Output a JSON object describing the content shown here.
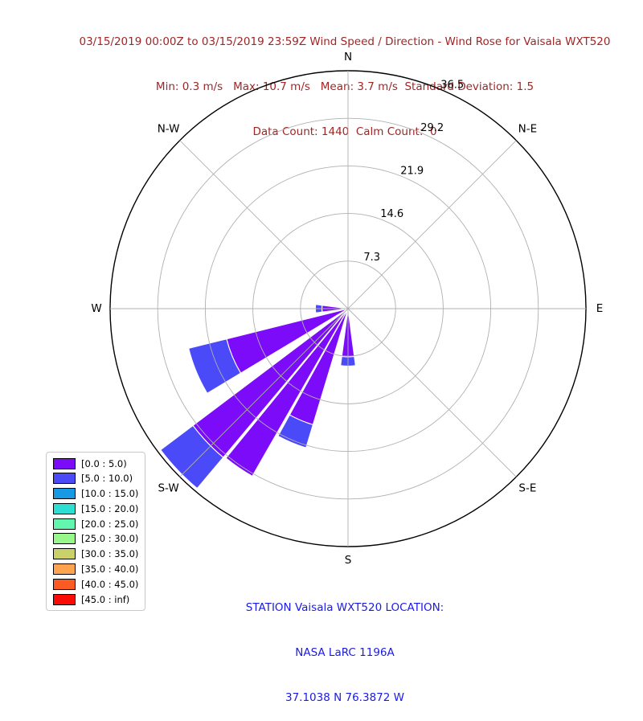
{
  "header": {
    "title_line1": "03/15/2019 00:00Z to 03/15/2019 23:59Z Wind Speed / Direction - Wind Rose for Vaisala WXT520",
    "title_line2": "Min: 0.3 m/s   Max: 10.7 m/s   Mean: 3.7 m/s  Standard Deviation: 1.5",
    "title_line3": "Data Count: 1440  Calm Count:  0",
    "color": "#a02626"
  },
  "footer": {
    "line1": "STATION Vaisala WXT520 LOCATION:",
    "line2": "NASA LaRC 1196A",
    "line3": "37.1038 N 76.3872 W",
    "color": "#1b1be8"
  },
  "chart_data": {
    "type": "windrose-polar-bar",
    "units": "m/s",
    "rmax": 36.5,
    "radial_ticks": [
      7.3,
      14.6,
      21.9,
      29.2,
      36.5
    ],
    "radial_tick_angle_deg": 25,
    "direction_labels": [
      "N",
      "N-E",
      "E",
      "S-E",
      "S",
      "S-W",
      "W",
      "N-W"
    ],
    "grid_color": "#b0b0b0",
    "outer_circle_color": "#000000",
    "speed_bins": [
      {
        "label": "[0.0 : 5.0)",
        "color": "#7c0bfa"
      },
      {
        "label": "[5.0 : 10.0)",
        "color": "#4a4af8"
      },
      {
        "label": "[10.0 : 15.0)",
        "color": "#1899e4"
      },
      {
        "label": "[15.0 : 20.0)",
        "color": "#2ddfd2"
      },
      {
        "label": "[20.0 : 25.0)",
        "color": "#62f6ae"
      },
      {
        "label": "[25.0 : 30.0)",
        "color": "#98f78a"
      },
      {
        "label": "[30.0 : 35.0)",
        "color": "#cbd16a"
      },
      {
        "label": "[35.0 : 40.0)",
        "color": "#ffa44e"
      },
      {
        "label": "[40.0 : 45.0)",
        "color": "#fb5a22"
      },
      {
        "label": "[45.0 : inf)",
        "color": "#fa0b06"
      }
    ],
    "petals": [
      {
        "direction": "W",
        "angle_deg": 270.0,
        "width_deg": 15,
        "segments": [
          {
            "bin": 0,
            "r0": 0,
            "r1": 4.0
          },
          {
            "bin": 1,
            "r0": 4.0,
            "r1": 5.0
          }
        ]
      },
      {
        "direction": "WSW",
        "angle_deg": 247.5,
        "width_deg": 17,
        "segments": [
          {
            "bin": 0,
            "r0": 0,
            "r1": 19.2
          },
          {
            "bin": 1,
            "r0": 19.2,
            "r1": 25.2
          }
        ]
      },
      {
        "direction": "SW",
        "angle_deg": 226.5,
        "width_deg": 13,
        "segments": [
          {
            "bin": 0,
            "r0": 0,
            "r1": 29.8
          },
          {
            "bin": 1,
            "r0": 29.8,
            "r1": 36.0
          }
        ]
      },
      {
        "direction": "SW-by-S",
        "angle_deg": 214.5,
        "width_deg": 9.5,
        "segments": [
          {
            "bin": 0,
            "r0": 0,
            "r1": 29.6
          }
        ]
      },
      {
        "direction": "SSW",
        "angle_deg": 202.8,
        "width_deg": 12,
        "segments": [
          {
            "bin": 0,
            "r0": 0,
            "r1": 18.6
          },
          {
            "bin": 1,
            "r0": 18.6,
            "r1": 22.3
          }
        ]
      },
      {
        "direction": "S",
        "angle_deg": 180.0,
        "width_deg": 15,
        "segments": [
          {
            "bin": 0,
            "r0": 0,
            "r1": 7.4
          },
          {
            "bin": 1,
            "r0": 7.4,
            "r1": 8.8
          }
        ]
      }
    ]
  }
}
